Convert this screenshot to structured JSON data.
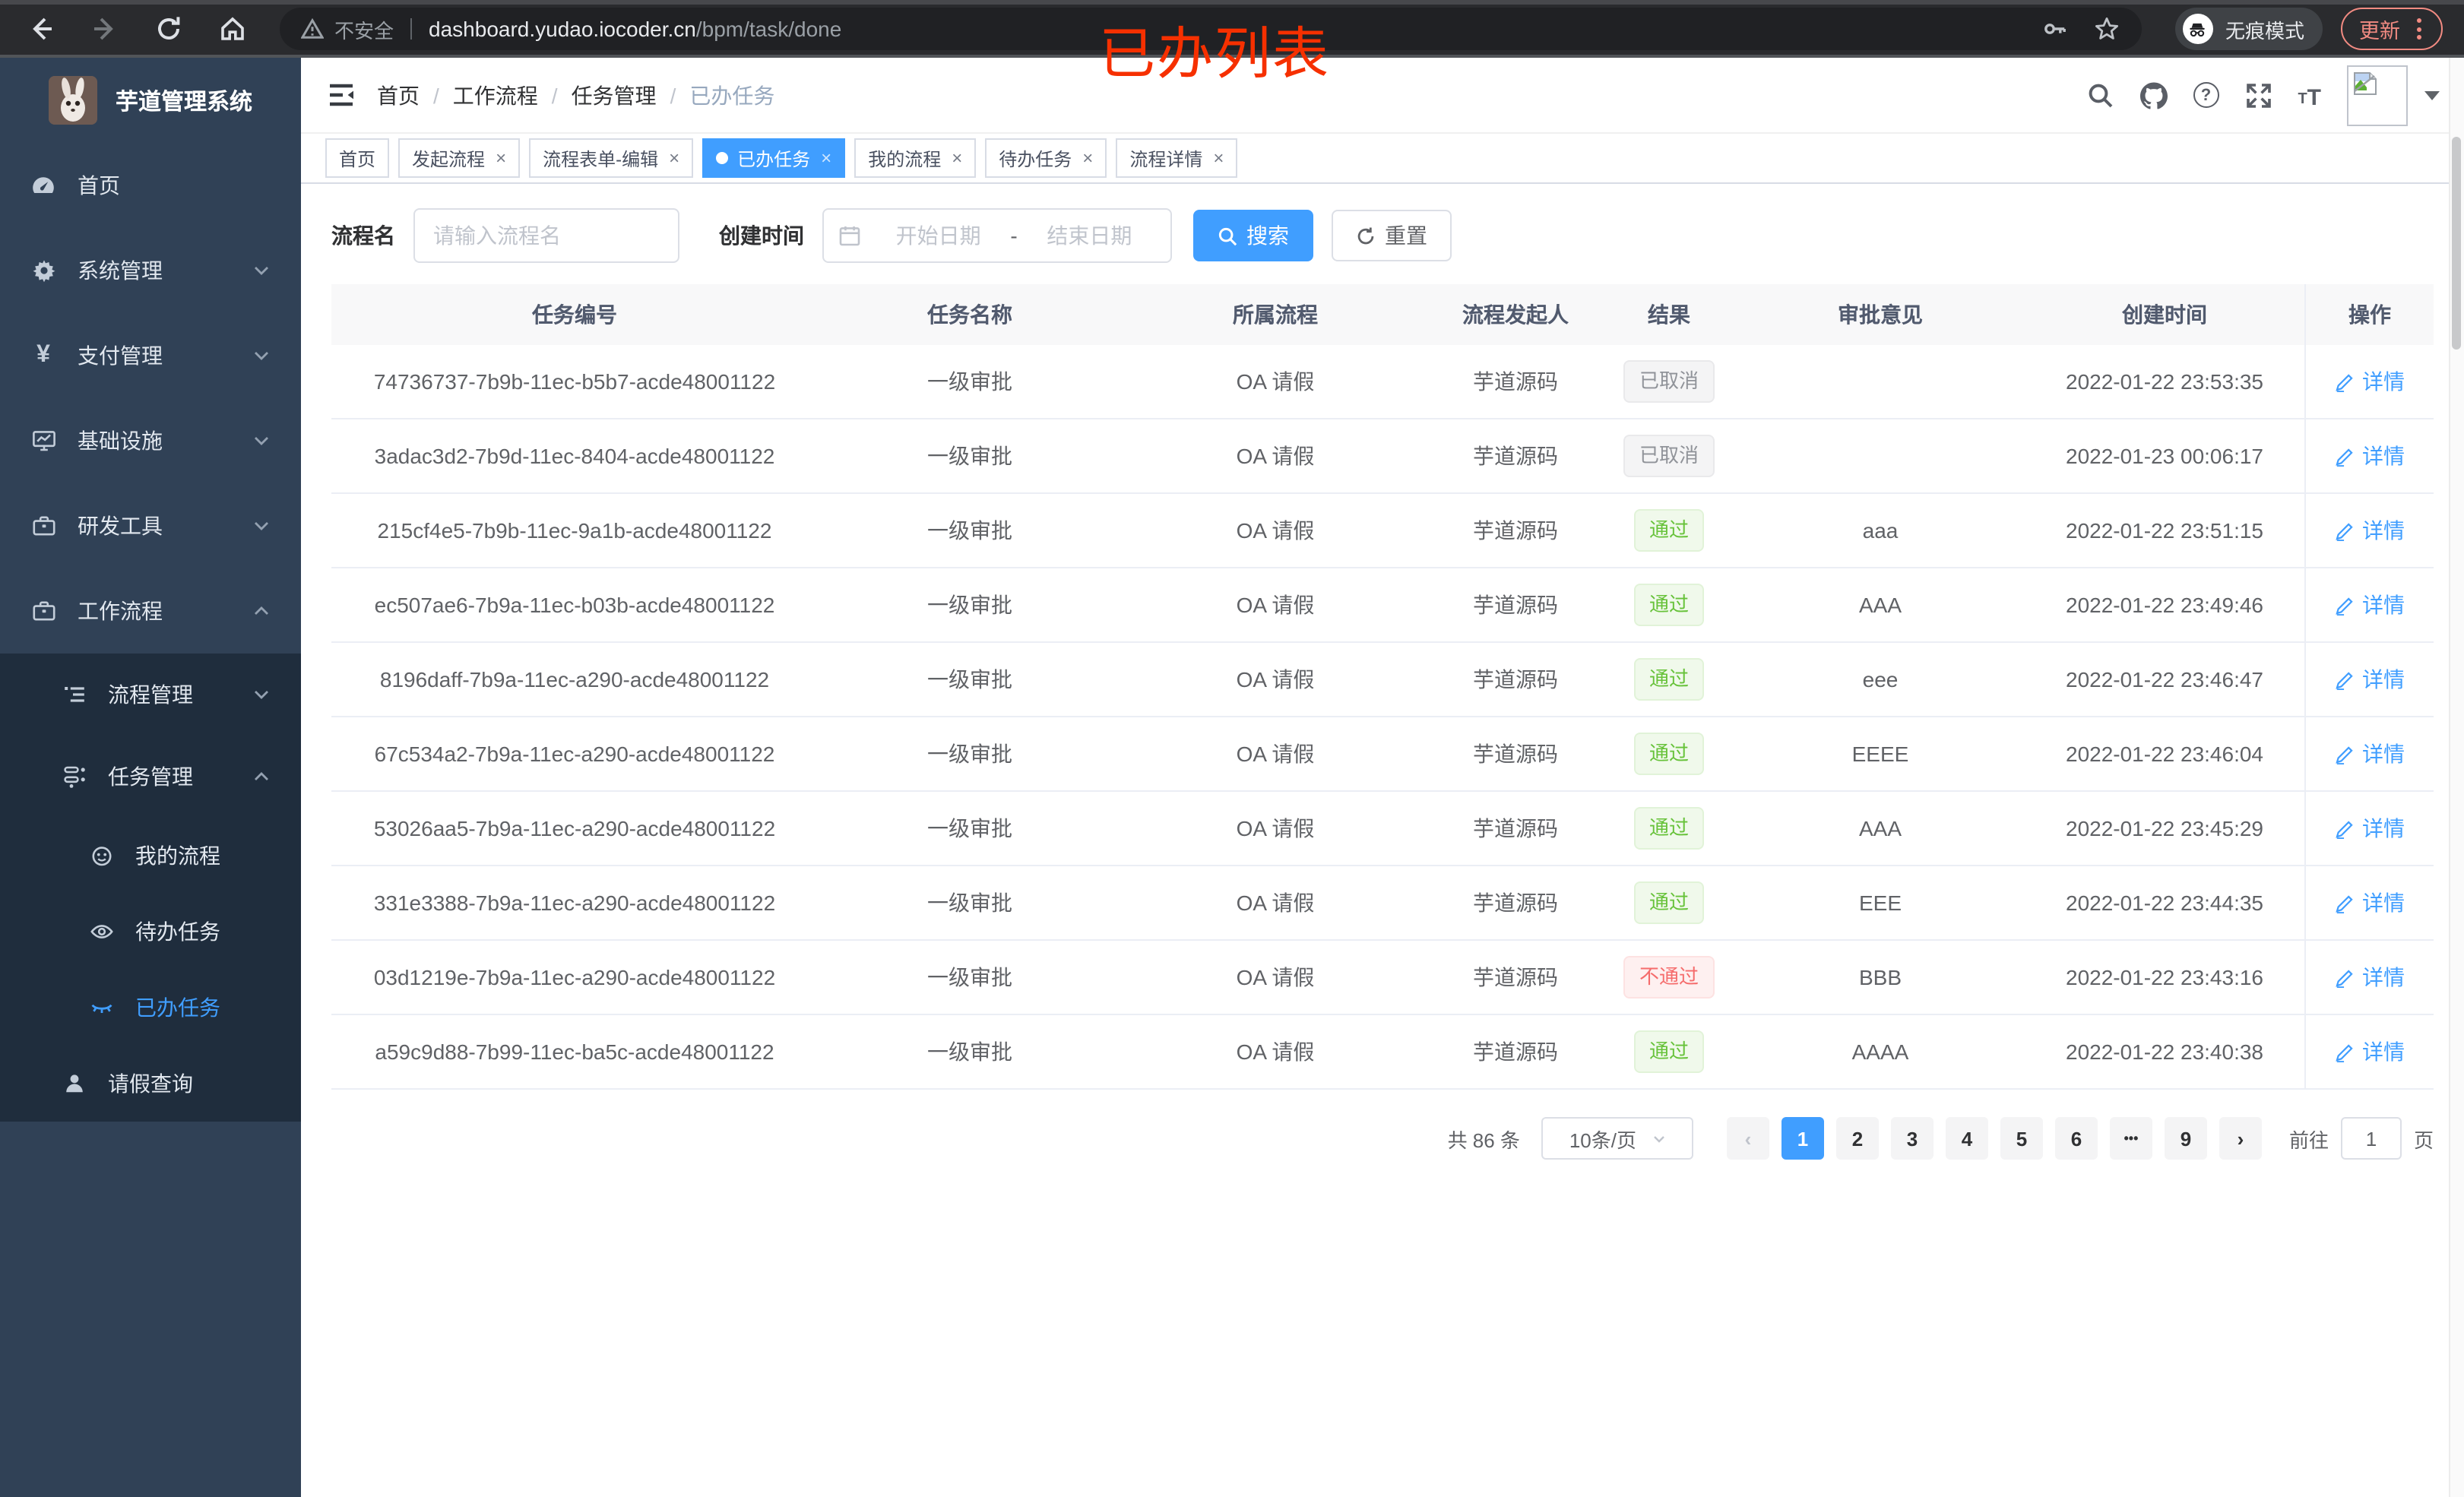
{
  "browser": {
    "security_label": "不安全",
    "url_host": "dashboard.yudao.iocoder.cn",
    "url_path": "/bpm/task/done",
    "incognito_label": "无痕模式",
    "update_label": "更新"
  },
  "annotation": {
    "text": "已办列表",
    "color": "#f63000"
  },
  "sidebar": {
    "title": "芋道管理系统",
    "menu": [
      {
        "label": "首页",
        "icon": "dashboard-icon",
        "level": 1,
        "chevron": ""
      },
      {
        "label": "系统管理",
        "icon": "gear-icon",
        "level": 1,
        "chevron": "down"
      },
      {
        "label": "支付管理",
        "icon": "yen-icon",
        "level": 1,
        "chevron": "down"
      },
      {
        "label": "基础设施",
        "icon": "monitor-icon",
        "level": 1,
        "chevron": "down"
      },
      {
        "label": "研发工具",
        "icon": "briefcase-icon",
        "level": 1,
        "chevron": "down"
      },
      {
        "label": "工作流程",
        "icon": "briefcase-icon",
        "level": 1,
        "chevron": "up"
      },
      {
        "label": "流程管理",
        "icon": "list-icon",
        "level": 2,
        "chevron": "down",
        "sub": true
      },
      {
        "label": "任务管理",
        "icon": "tree-icon",
        "level": 2,
        "chevron": "up",
        "sub": true
      },
      {
        "label": "我的流程",
        "icon": "face-icon",
        "level": 3,
        "sub": true
      },
      {
        "label": "待办任务",
        "icon": "eye-icon",
        "level": 3,
        "sub": true
      },
      {
        "label": "已办任务",
        "icon": "eye-closed-icon",
        "level": 3,
        "sub": true,
        "active": true
      },
      {
        "label": "请假查询",
        "icon": "user-icon",
        "level": 2,
        "sub": true,
        "small": true
      }
    ]
  },
  "header": {
    "breadcrumb": [
      "首页",
      "工作流程",
      "任务管理",
      "已办任务"
    ]
  },
  "tabs": [
    {
      "label": "首页",
      "closable": false,
      "active": false
    },
    {
      "label": "发起流程",
      "closable": true,
      "active": false
    },
    {
      "label": "流程表单-编辑",
      "closable": true,
      "active": false
    },
    {
      "label": "已办任务",
      "closable": true,
      "active": true
    },
    {
      "label": "我的流程",
      "closable": true,
      "active": false
    },
    {
      "label": "待办任务",
      "closable": true,
      "active": false
    },
    {
      "label": "流程详情",
      "closable": true,
      "active": false
    }
  ],
  "filters": {
    "name_label": "流程名",
    "name_placeholder": "请输入流程名",
    "date_label": "创建时间",
    "date_start_placeholder": "开始日期",
    "date_separator": "-",
    "date_end_placeholder": "结束日期",
    "search_label": "搜索",
    "reset_label": "重置"
  },
  "table": {
    "columns": [
      "任务编号",
      "任务名称",
      "所属流程",
      "流程发起人",
      "结果",
      "审批意见",
      "创建时间",
      "操作"
    ],
    "action_label": "详情",
    "rows": [
      {
        "id": "74736737-7b9b-11ec-b5b7-acde48001122",
        "name": "一级审批",
        "process": "OA 请假",
        "starter": "芋道源码",
        "result": "已取消",
        "result_type": "info",
        "opinion": "",
        "time": "2022-01-22 23:53:35"
      },
      {
        "id": "3adac3d2-7b9d-11ec-8404-acde48001122",
        "name": "一级审批",
        "process": "OA 请假",
        "starter": "芋道源码",
        "result": "已取消",
        "result_type": "info",
        "opinion": "",
        "time": "2022-01-23 00:06:17"
      },
      {
        "id": "215cf4e5-7b9b-11ec-9a1b-acde48001122",
        "name": "一级审批",
        "process": "OA 请假",
        "starter": "芋道源码",
        "result": "通过",
        "result_type": "success",
        "opinion": "aaa",
        "time": "2022-01-22 23:51:15"
      },
      {
        "id": "ec507ae6-7b9a-11ec-b03b-acde48001122",
        "name": "一级审批",
        "process": "OA 请假",
        "starter": "芋道源码",
        "result": "通过",
        "result_type": "success",
        "opinion": "AAA",
        "time": "2022-01-22 23:49:46"
      },
      {
        "id": "8196daff-7b9a-11ec-a290-acde48001122",
        "name": "一级审批",
        "process": "OA 请假",
        "starter": "芋道源码",
        "result": "通过",
        "result_type": "success",
        "opinion": "eee",
        "time": "2022-01-22 23:46:47"
      },
      {
        "id": "67c534a2-7b9a-11ec-a290-acde48001122",
        "name": "一级审批",
        "process": "OA 请假",
        "starter": "芋道源码",
        "result": "通过",
        "result_type": "success",
        "opinion": "EEEE",
        "time": "2022-01-22 23:46:04"
      },
      {
        "id": "53026aa5-7b9a-11ec-a290-acde48001122",
        "name": "一级审批",
        "process": "OA 请假",
        "starter": "芋道源码",
        "result": "通过",
        "result_type": "success",
        "opinion": "AAA",
        "time": "2022-01-22 23:45:29"
      },
      {
        "id": "331e3388-7b9a-11ec-a290-acde48001122",
        "name": "一级审批",
        "process": "OA 请假",
        "starter": "芋道源码",
        "result": "通过",
        "result_type": "success",
        "opinion": "EEE",
        "time": "2022-01-22 23:44:35"
      },
      {
        "id": "03d1219e-7b9a-11ec-a290-acde48001122",
        "name": "一级审批",
        "process": "OA 请假",
        "starter": "芋道源码",
        "result": "不通过",
        "result_type": "danger",
        "opinion": "BBB",
        "time": "2022-01-22 23:43:16"
      },
      {
        "id": "a59c9d88-7b99-11ec-ba5c-acde48001122",
        "name": "一级审批",
        "process": "OA 请假",
        "starter": "芋道源码",
        "result": "通过",
        "result_type": "success",
        "opinion": "AAAA",
        "time": "2022-01-22 23:40:38"
      }
    ]
  },
  "pagination": {
    "total": "共 86 条",
    "page_size": "10条/页",
    "pages": [
      "1",
      "2",
      "3",
      "4",
      "5",
      "6",
      "...",
      "9"
    ],
    "active": "1",
    "goto_label": "前往",
    "goto_value": "1",
    "goto_unit": "页"
  },
  "colors": {
    "accent": "#409eff",
    "success": "#67c23a",
    "danger": "#f56c6c",
    "info": "#909399",
    "sidebar": "#304156",
    "sidebar_sub": "#1f2d3d"
  }
}
